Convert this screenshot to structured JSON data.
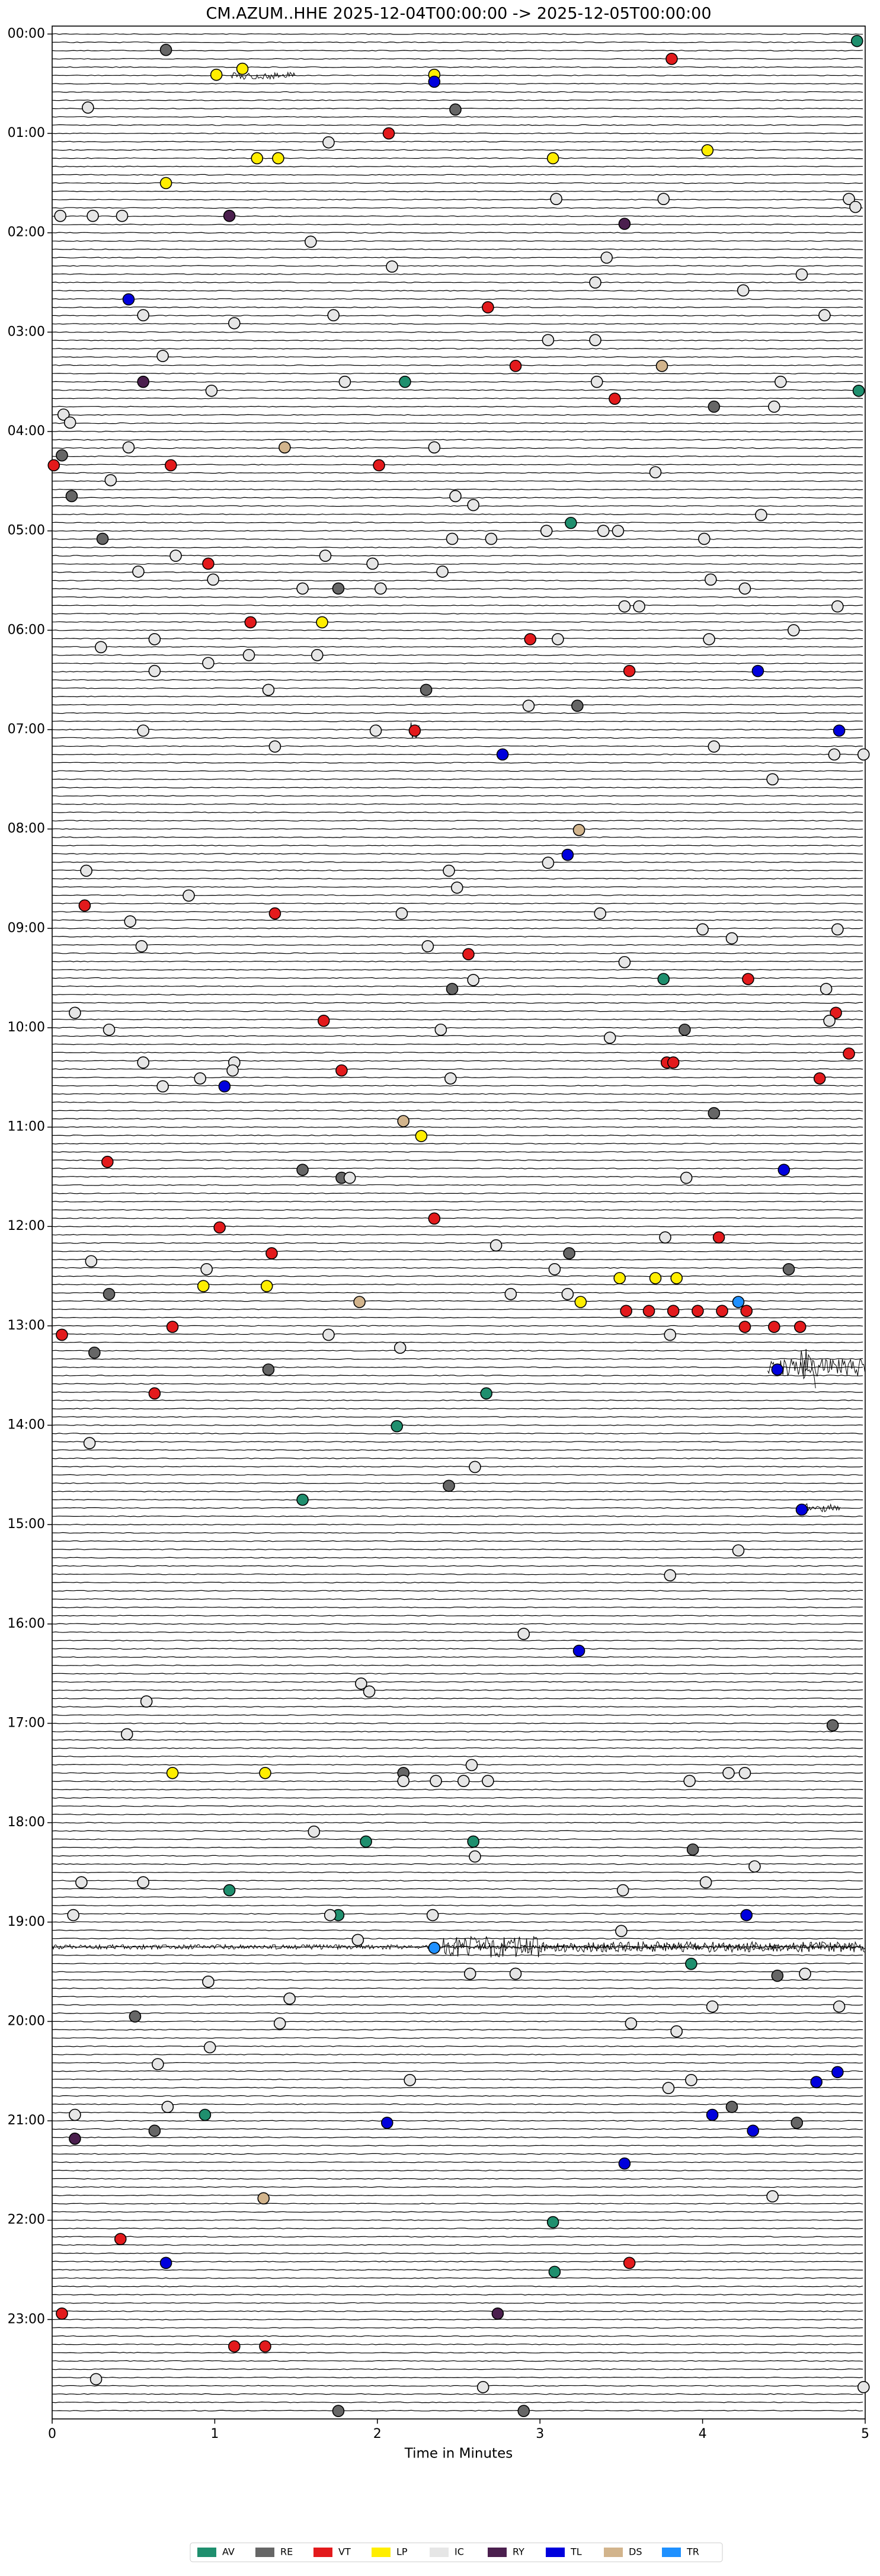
{
  "chart_data": {
    "type": "scatter",
    "title": "CM.AZUM..HHE  2025-12-04T00:00:00 -> 2025-12-05T00:00:00",
    "x_label": "Time in Minutes",
    "xlim": [
      0,
      5
    ],
    "xticks": [
      0,
      1,
      2,
      3,
      4,
      5
    ],
    "ylim": [
      24,
      -0.08
    ],
    "yticks": [
      {
        "value": 0,
        "label": "00:00"
      },
      {
        "value": 1,
        "label": "01:00"
      },
      {
        "value": 2,
        "label": "02:00"
      },
      {
        "value": 3,
        "label": "03:00"
      },
      {
        "value": 4,
        "label": "04:00"
      },
      {
        "value": 5,
        "label": "05:00"
      },
      {
        "value": 6,
        "label": "06:00"
      },
      {
        "value": 7,
        "label": "07:00"
      },
      {
        "value": 8,
        "label": "08:00"
      },
      {
        "value": 9,
        "label": "09:00"
      },
      {
        "value": 10,
        "label": "10:00"
      },
      {
        "value": 11,
        "label": "11:00"
      },
      {
        "value": 12,
        "label": "12:00"
      },
      {
        "value": 13,
        "label": "13:00"
      },
      {
        "value": 14,
        "label": "14:00"
      },
      {
        "value": 15,
        "label": "15:00"
      },
      {
        "value": 16,
        "label": "16:00"
      },
      {
        "value": 17,
        "label": "17:00"
      },
      {
        "value": 18,
        "label": "18:00"
      },
      {
        "value": 19,
        "label": "19:00"
      },
      {
        "value": 20,
        "label": "20:00"
      },
      {
        "value": 21,
        "label": "21:00"
      },
      {
        "value": 22,
        "label": "22:00"
      },
      {
        "value": 23,
        "label": "23:00"
      }
    ],
    "series": [
      {
        "name": "AV",
        "color": "#1f8f6e",
        "x": [
          4.95,
          2.17,
          4.96,
          3.19,
          3.76,
          2.67,
          2.12,
          1.54,
          1.93,
          2.59,
          1.09,
          1.76,
          3.93,
          0.94,
          3.08,
          3.09
        ],
        "values": [
          0.07,
          3.5,
          3.59,
          4.92,
          9.51,
          13.68,
          14.01,
          14.75,
          18.19,
          18.19,
          18.68,
          18.93,
          19.42,
          20.94,
          22.02,
          22.52
        ]
      },
      {
        "name": "RE",
        "color": "#666666",
        "x": [
          0.7,
          2.48,
          4.07,
          0.06,
          0.12,
          0.31,
          1.76,
          2.3,
          3.23,
          2.46,
          3.89,
          4.07,
          1.54,
          1.78,
          3.18,
          4.53,
          0.35,
          0.26,
          1.33,
          2.44,
          2.16,
          3.94,
          0.51,
          4.46,
          4.18,
          0.63,
          4.58,
          4.8,
          1.76,
          2.9
        ],
        "values": [
          0.16,
          0.76,
          3.75,
          4.24,
          4.65,
          5.08,
          5.58,
          6.6,
          6.76,
          9.61,
          10.02,
          10.86,
          11.43,
          11.51,
          12.27,
          12.43,
          12.68,
          13.27,
          13.44,
          14.61,
          17.5,
          18.27,
          19.95,
          19.54,
          20.86,
          21.1,
          21.02,
          17.02,
          23.92,
          23.92
        ]
      },
      {
        "name": "VT",
        "color": "#e31a1c",
        "x": [
          3.81,
          2.07,
          2.68,
          2.85,
          3.46,
          0.01,
          0.73,
          2.01,
          0.96,
          1.22,
          2.94,
          3.55,
          2.23,
          0.2,
          1.37,
          2.56,
          4.28,
          1.67,
          4.82,
          4.9,
          3.78,
          3.82,
          1.78,
          4.72,
          0.34,
          2.35,
          1.03,
          4.1,
          1.35,
          3.53,
          3.67,
          3.82,
          3.97,
          4.12,
          4.27,
          0.06,
          0.74,
          4.26,
          4.44,
          4.6,
          0.63,
          0.42,
          3.55,
          0.06,
          1.12,
          1.31
        ],
        "values": [
          0.25,
          1.0,
          2.75,
          3.34,
          3.67,
          4.34,
          4.34,
          4.34,
          5.33,
          5.92,
          6.09,
          6.41,
          7.01,
          8.77,
          8.85,
          9.26,
          9.51,
          9.93,
          9.85,
          10.26,
          10.35,
          10.35,
          10.43,
          10.51,
          11.35,
          11.92,
          12.01,
          12.11,
          12.27,
          12.85,
          12.85,
          12.85,
          12.85,
          12.85,
          12.85,
          13.09,
          13.01,
          13.01,
          13.01,
          13.01,
          13.68,
          22.19,
          22.43,
          22.94,
          23.27,
          23.27
        ]
      },
      {
        "name": "LP",
        "color": "#ffee00",
        "x": [
          1.17,
          1.01,
          2.35,
          1.26,
          1.39,
          3.08,
          4.03,
          0.7,
          1.66,
          2.27,
          3.49,
          3.71,
          3.84,
          0.93,
          1.32,
          3.25,
          0.74,
          1.31
        ],
        "values": [
          0.35,
          0.41,
          0.41,
          1.25,
          1.25,
          1.25,
          1.17,
          1.5,
          5.92,
          11.09,
          12.52,
          12.52,
          12.52,
          12.6,
          12.6,
          12.76,
          17.5,
          17.5
        ]
      },
      {
        "name": "IC",
        "color": "#e6e6e6",
        "x": [
          0.22,
          1.7,
          0.05,
          0.25,
          0.43,
          3.1,
          3.76,
          4.9,
          4.94,
          1.59,
          3.41,
          2.09,
          4.61,
          3.34,
          4.25,
          0.56,
          1.73,
          4.75,
          1.12,
          3.05,
          3.34,
          0.68,
          1.8,
          3.35,
          4.48,
          0.98,
          4.44,
          0.07,
          0.11,
          0.47,
          2.35,
          3.71,
          0.36,
          2.48,
          2.59,
          4.36,
          2.46,
          2.7,
          3.04,
          3.39,
          3.48,
          4.01,
          0.76,
          1.68,
          1.97,
          0.53,
          0.99,
          2.4,
          1.54,
          2.02,
          4.05,
          4.26,
          3.52,
          3.61,
          4.83,
          4.56,
          0.63,
          3.11,
          4.04,
          0.3,
          1.21,
          1.63,
          0.96,
          0.63,
          1.33,
          2.93,
          0.56,
          1.99,
          1.37,
          4.07,
          4.81,
          4.99,
          4.43,
          3.05,
          0.21,
          2.44,
          2.49,
          0.84,
          2.15,
          3.37,
          0.48,
          4.0,
          4.18,
          4.83,
          0.55,
          2.31,
          3.52,
          2.59,
          4.76,
          0.14,
          4.78,
          0.35,
          2.39,
          3.43,
          0.56,
          1.12,
          1.11,
          0.91,
          0.68,
          2.45,
          1.83,
          3.9,
          3.77,
          2.73,
          0.24,
          0.95,
          3.09,
          2.82,
          3.17,
          1.7,
          3.8,
          2.14,
          0.23,
          2.6,
          4.22,
          3.8,
          2.9,
          1.9,
          1.95,
          0.58,
          0.46,
          2.58,
          2.16,
          2.36,
          2.53,
          2.68,
          3.92,
          4.16,
          4.26,
          1.61,
          2.6,
          4.32,
          0.18,
          0.56,
          4.02,
          3.51,
          0.13,
          1.71,
          2.34,
          1.88,
          3.5,
          2.57,
          2.85,
          4.63,
          0.96,
          1.46,
          4.06,
          4.84,
          1.4,
          3.56,
          3.84,
          0.97,
          0.65,
          2.2,
          3.93,
          3.79,
          0.71,
          0.14,
          4.43,
          0.27,
          2.65,
          4.99
        ],
        "values": [
          0.74,
          1.09,
          1.83,
          1.83,
          1.83,
          1.66,
          1.66,
          1.66,
          1.74,
          2.09,
          2.25,
          2.34,
          2.42,
          2.5,
          2.58,
          2.83,
          2.83,
          2.83,
          2.91,
          3.08,
          3.08,
          3.24,
          3.5,
          3.5,
          3.5,
          3.59,
          3.75,
          3.83,
          3.91,
          4.16,
          4.16,
          4.41,
          4.49,
          4.65,
          4.74,
          4.84,
          5.08,
          5.08,
          5.0,
          5.0,
          5.0,
          5.08,
          5.25,
          5.25,
          5.33,
          5.41,
          5.49,
          5.41,
          5.58,
          5.58,
          5.49,
          5.58,
          5.76,
          5.76,
          5.76,
          6.0,
          6.09,
          6.09,
          6.09,
          6.17,
          6.25,
          6.25,
          6.33,
          6.41,
          6.6,
          6.76,
          7.01,
          7.01,
          7.17,
          7.17,
          7.25,
          7.25,
          7.5,
          8.34,
          8.42,
          8.42,
          8.59,
          8.67,
          8.85,
          8.85,
          8.93,
          9.01,
          9.1,
          9.01,
          9.18,
          9.18,
          9.34,
          9.52,
          9.61,
          9.85,
          9.93,
          10.02,
          10.02,
          10.1,
          10.35,
          10.35,
          10.43,
          10.51,
          10.59,
          10.51,
          11.51,
          11.51,
          12.11,
          12.19,
          12.35,
          12.43,
          12.43,
          12.68,
          12.68,
          13.09,
          13.09,
          13.22,
          14.18,
          14.42,
          15.26,
          15.51,
          16.1,
          16.6,
          16.68,
          16.78,
          17.11,
          17.42,
          17.58,
          17.58,
          17.58,
          17.58,
          17.58,
          17.5,
          17.5,
          18.09,
          18.34,
          18.44,
          18.6,
          18.6,
          18.6,
          18.68,
          18.93,
          18.93,
          18.93,
          19.18,
          19.09,
          19.52,
          19.52,
          19.52,
          19.6,
          19.77,
          19.85,
          19.85,
          20.02,
          20.02,
          20.1,
          20.26,
          20.43,
          20.59,
          20.59,
          20.67,
          20.86,
          20.94,
          21.76,
          23.6,
          23.68,
          23.68
        ]
      },
      {
        "name": "RY",
        "color": "#4b1f4e",
        "x": [
          1.09,
          3.52,
          0.56,
          2.74,
          0.14
        ],
        "values": [
          1.83,
          1.91,
          3.5,
          22.94,
          21.18
        ]
      },
      {
        "name": "TL",
        "color": "#0000dd",
        "x": [
          2.35,
          0.47,
          4.34,
          4.84,
          2.77,
          3.17,
          1.06,
          4.5,
          4.46,
          4.61,
          3.24,
          4.27,
          2.06,
          4.06,
          4.31,
          4.7,
          4.83,
          3.52,
          0.7
        ],
        "values": [
          0.48,
          2.67,
          6.41,
          7.01,
          7.25,
          8.26,
          10.59,
          11.43,
          13.44,
          14.85,
          16.27,
          18.93,
          21.02,
          20.94,
          21.1,
          20.61,
          20.51,
          21.43,
          22.43
        ]
      },
      {
        "name": "DS",
        "color": "#d2b48c",
        "x": [
          1.43,
          3.75,
          3.24,
          2.16,
          1.89,
          1.3
        ],
        "values": [
          4.16,
          3.34,
          8.01,
          10.94,
          12.76,
          21.78
        ]
      },
      {
        "name": "TR",
        "color": "#1e90ff",
        "x": [
          4.22,
          2.35
        ],
        "values": [
          12.76,
          19.26
        ]
      }
    ]
  }
}
